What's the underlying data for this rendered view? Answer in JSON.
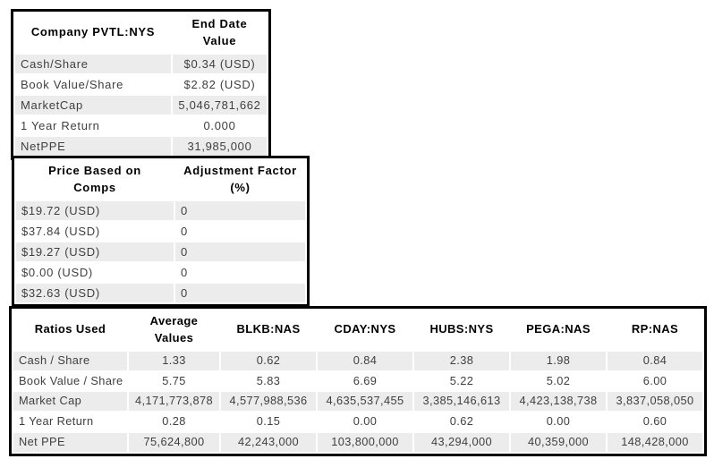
{
  "colors": {
    "page_bg": "#ffffff",
    "table_border": "#000000",
    "stripe_row": "#ececec",
    "plain_row": "#ffffff",
    "body_text": "#3f3f3f",
    "header_text": "#000000"
  },
  "chart_data": [
    {
      "type": "table",
      "name": "company-end-date-values",
      "header_lines": [
        [
          "Company PVTL:NYS"
        ],
        [
          "End Date",
          "Value"
        ]
      ],
      "columns": [
        "Company PVTL:NYS",
        "End Date Value"
      ],
      "col_align": [
        "left",
        "center"
      ],
      "rows": [
        [
          "Cash/Share",
          "$0.34 (USD)"
        ],
        [
          "Book Value/Share",
          "$2.82 (USD)"
        ],
        [
          "MarketCap",
          "5,046,781,662"
        ],
        [
          "1 Year Return",
          "0.000"
        ],
        [
          "NetPPE",
          "31,985,000"
        ]
      ]
    },
    {
      "type": "table",
      "name": "price-based-on-comps",
      "header_lines": [
        [
          "Price Based on",
          "Comps"
        ],
        [
          "Adjustment Factor",
          "(%)"
        ]
      ],
      "columns": [
        "Price Based on Comps",
        "Adjustment Factor (%)"
      ],
      "col_align": [
        "left",
        "left"
      ],
      "rows": [
        [
          "$19.72 (USD)",
          "0"
        ],
        [
          "$37.84 (USD)",
          "0"
        ],
        [
          "$19.27 (USD)",
          "0"
        ],
        [
          "$0.00 (USD)",
          "0"
        ],
        [
          "$32.63 (USD)",
          "0"
        ]
      ]
    },
    {
      "type": "table",
      "name": "ratios-used-comparables",
      "header_lines": [
        [
          "Ratios Used"
        ],
        [
          "Average",
          "Values"
        ],
        [
          "BLKB:NAS"
        ],
        [
          "CDAY:NYS"
        ],
        [
          "HUBS:NYS"
        ],
        [
          "PEGA:NAS"
        ],
        [
          "RP:NAS"
        ]
      ],
      "columns": [
        "Ratios Used",
        "Average Values",
        "BLKB:NAS",
        "CDAY:NYS",
        "HUBS:NYS",
        "PEGA:NAS",
        "RP:NAS"
      ],
      "col_align": [
        "left",
        "center",
        "center",
        "center",
        "center",
        "center",
        "center"
      ],
      "rows": [
        [
          "Cash / Share",
          "1.33",
          "0.62",
          "0.84",
          "2.38",
          "1.98",
          "0.84"
        ],
        [
          "Book Value / Share",
          "5.75",
          "5.83",
          "6.69",
          "5.22",
          "5.02",
          "6.00"
        ],
        [
          "Market Cap",
          "4,171,773,878",
          "4,577,988,536",
          "4,635,537,455",
          "3,385,146,613",
          "4,423,138,738",
          "3,837,058,050"
        ],
        [
          "1 Year Return",
          "0.28",
          "0.15",
          "0.00",
          "0.62",
          "0.00",
          "0.60"
        ],
        [
          "Net PPE",
          "75,624,800",
          "42,243,000",
          "103,800,000",
          "43,294,000",
          "40,359,000",
          "148,428,000"
        ]
      ]
    }
  ]
}
